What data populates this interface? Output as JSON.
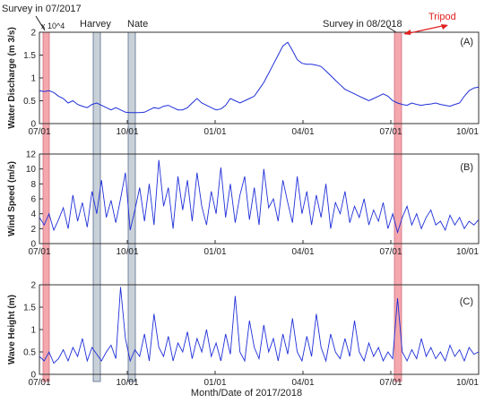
{
  "annotations": {
    "survey_2017": "Survey in 07/2017",
    "survey_2018": "Survey in 08/2018",
    "harvey": "Harvey",
    "nate": "Nate",
    "tripod": "Tripod"
  },
  "xlabel": "Month/Date of 2017/2018",
  "colors": {
    "line": "#1f2fd8",
    "survey_band": "#f4a7ad",
    "storm_band": "#c9d1d8",
    "tripod": "#e02020"
  },
  "chart_data": [
    {
      "type": "line",
      "panel": "(A)",
      "ylabel": "Water Discharge (m 3/s)",
      "exponent": "x 10^4",
      "ylim": [
        0,
        2
      ],
      "yticks": [
        "0",
        "0.5",
        "1",
        "1.5",
        "2"
      ],
      "xlim": [
        0,
        92
      ],
      "xticks": [
        "07/01",
        "10/01",
        "01/01",
        "04/01",
        "07/01",
        "10/01"
      ],
      "series": [
        {
          "x": [
            0,
            1,
            2,
            3,
            4,
            5,
            6,
            7,
            8,
            9,
            10,
            11,
            12,
            13,
            14,
            15,
            16,
            17,
            18,
            19,
            20,
            21,
            22,
            23,
            24,
            25,
            26,
            27,
            28,
            29,
            30,
            31,
            32,
            33,
            34,
            35,
            36,
            37,
            38,
            39,
            40,
            41,
            42,
            43,
            44,
            45,
            46,
            47,
            48,
            49,
            50,
            51,
            52,
            53,
            54,
            55,
            56,
            57,
            58,
            59,
            60,
            61,
            62,
            63,
            64,
            65,
            66,
            67,
            68,
            69,
            70,
            71,
            72,
            73,
            74,
            75,
            76,
            77,
            78,
            79,
            80,
            81,
            82,
            83,
            84,
            85,
            86,
            87,
            88,
            89,
            90,
            91,
            92
          ],
          "values": [
            0.72,
            0.7,
            0.72,
            0.68,
            0.6,
            0.55,
            0.45,
            0.5,
            0.42,
            0.38,
            0.35,
            0.42,
            0.45,
            0.4,
            0.35,
            0.3,
            0.35,
            0.3,
            0.25,
            0.24,
            0.24,
            0.24,
            0.25,
            0.3,
            0.35,
            0.33,
            0.38,
            0.4,
            0.35,
            0.3,
            0.3,
            0.35,
            0.45,
            0.55,
            0.45,
            0.4,
            0.35,
            0.3,
            0.32,
            0.4,
            0.55,
            0.5,
            0.45,
            0.5,
            0.55,
            0.6,
            0.75,
            0.9,
            1.1,
            1.3,
            1.5,
            1.7,
            1.78,
            1.6,
            1.4,
            1.32,
            1.3,
            1.3,
            1.28,
            1.25,
            1.15,
            1.05,
            0.95,
            0.85,
            0.75,
            0.7,
            0.65,
            0.6,
            0.55,
            0.5,
            0.55,
            0.6,
            0.65,
            0.6,
            0.5,
            0.45,
            0.42,
            0.4,
            0.45,
            0.42,
            0.4,
            0.42,
            0.43,
            0.45,
            0.42,
            0.4,
            0.38,
            0.42,
            0.45,
            0.6,
            0.72,
            0.78,
            0.8
          ]
        }
      ]
    },
    {
      "type": "line",
      "panel": "(B)",
      "ylabel": "Wind Speed (m/s)",
      "ylim": [
        0,
        12
      ],
      "yticks": [
        "0",
        "2",
        "4",
        "6",
        "8",
        "10",
        "12"
      ],
      "xlim": [
        0,
        92
      ],
      "xticks": [
        "07/01",
        "10/01",
        "01/01",
        "04/01",
        "07/01",
        "10/01"
      ],
      "series": [
        {
          "x": [
            0,
            1,
            2,
            3,
            4,
            5,
            6,
            7,
            8,
            9,
            10,
            11,
            12,
            13,
            14,
            15,
            16,
            17,
            18,
            19,
            20,
            21,
            22,
            23,
            24,
            25,
            26,
            27,
            28,
            29,
            30,
            31,
            32,
            33,
            34,
            35,
            36,
            37,
            38,
            39,
            40,
            41,
            42,
            43,
            44,
            45,
            46,
            47,
            48,
            49,
            50,
            51,
            52,
            53,
            54,
            55,
            56,
            57,
            58,
            59,
            60,
            61,
            62,
            63,
            64,
            65,
            66,
            67,
            68,
            69,
            70,
            71,
            72,
            73,
            74,
            75,
            76,
            77,
            78,
            79,
            80,
            81,
            82,
            83,
            84,
            85,
            86,
            87,
            88,
            89,
            90,
            91,
            92
          ],
          "values": [
            3.5,
            2.5,
            4.0,
            1.8,
            3.2,
            4.8,
            2.0,
            6.5,
            3.0,
            5.5,
            2.2,
            7.0,
            4.0,
            8.5,
            3.5,
            5.8,
            2.8,
            6.0,
            9.5,
            1.8,
            4.5,
            7.5,
            3.0,
            8.0,
            2.5,
            11.2,
            5.0,
            7.5,
            2.0,
            9.0,
            4.5,
            8.5,
            3.0,
            9.5,
            5.0,
            2.5,
            7.0,
            4.0,
            10.2,
            3.5,
            8.0,
            2.8,
            6.5,
            9.0,
            3.2,
            7.5,
            2.5,
            10.0,
            4.8,
            6.0,
            3.0,
            8.5,
            5.5,
            2.8,
            9.0,
            4.0,
            7.0,
            2.5,
            6.5,
            3.5,
            8.0,
            2.0,
            5.5,
            4.0,
            7.0,
            2.8,
            5.0,
            3.5,
            6.0,
            2.5,
            4.5,
            3.0,
            5.5,
            2.0,
            4.0,
            1.5,
            3.5,
            5.0,
            2.5,
            4.0,
            2.0,
            3.5,
            4.5,
            2.5,
            3.0,
            1.8,
            3.8,
            2.5,
            3.5,
            2.0,
            3.0,
            2.5,
            3.2
          ]
        }
      ]
    },
    {
      "type": "line",
      "panel": "(C)",
      "ylabel": "Wave Height (m)",
      "ylim": [
        0,
        2
      ],
      "yticks": [
        "0",
        "0.5",
        "1",
        "1.5",
        "2"
      ],
      "xlim": [
        0,
        92
      ],
      "xticks": [
        "07/01",
        "10/01",
        "01/01",
        "04/01",
        "07/01",
        "10/01"
      ],
      "series": [
        {
          "x": [
            0,
            1,
            2,
            3,
            4,
            5,
            6,
            7,
            8,
            9,
            10,
            11,
            12,
            13,
            14,
            15,
            16,
            17,
            18,
            19,
            20,
            21,
            22,
            23,
            24,
            25,
            26,
            27,
            28,
            29,
            30,
            31,
            32,
            33,
            34,
            35,
            36,
            37,
            38,
            39,
            40,
            41,
            42,
            43,
            44,
            45,
            46,
            47,
            48,
            49,
            50,
            51,
            52,
            53,
            54,
            55,
            56,
            57,
            58,
            59,
            60,
            61,
            62,
            63,
            64,
            65,
            66,
            67,
            68,
            69,
            70,
            71,
            72,
            73,
            74,
            75,
            76,
            77,
            78,
            79,
            80,
            81,
            82,
            83,
            84,
            85,
            86,
            87,
            88,
            89,
            90,
            91,
            92
          ],
          "values": [
            0.4,
            0.3,
            0.5,
            0.25,
            0.35,
            0.55,
            0.3,
            0.6,
            0.4,
            0.8,
            0.3,
            0.6,
            0.45,
            0.3,
            0.5,
            0.65,
            0.35,
            1.95,
            0.8,
            0.3,
            0.55,
            0.4,
            0.9,
            0.3,
            1.35,
            0.6,
            0.4,
            0.85,
            0.3,
            0.7,
            0.5,
            0.95,
            0.35,
            0.8,
            0.5,
            1.0,
            0.4,
            0.7,
            0.3,
            0.9,
            0.45,
            1.75,
            0.5,
            0.3,
            1.2,
            0.6,
            0.35,
            1.1,
            0.5,
            0.8,
            0.3,
            0.9,
            0.45,
            1.25,
            0.5,
            0.3,
            0.85,
            0.4,
            1.35,
            0.6,
            0.3,
            0.9,
            0.5,
            0.35,
            0.8,
            0.4,
            1.2,
            0.5,
            0.3,
            0.7,
            0.4,
            0.6,
            0.3,
            0.5,
            0.35,
            1.7,
            0.5,
            0.3,
            0.55,
            0.35,
            0.8,
            0.4,
            0.6,
            0.35,
            0.5,
            0.3,
            0.65,
            0.4,
            0.55,
            0.3,
            0.6,
            0.45,
            0.5
          ]
        }
      ]
    }
  ]
}
